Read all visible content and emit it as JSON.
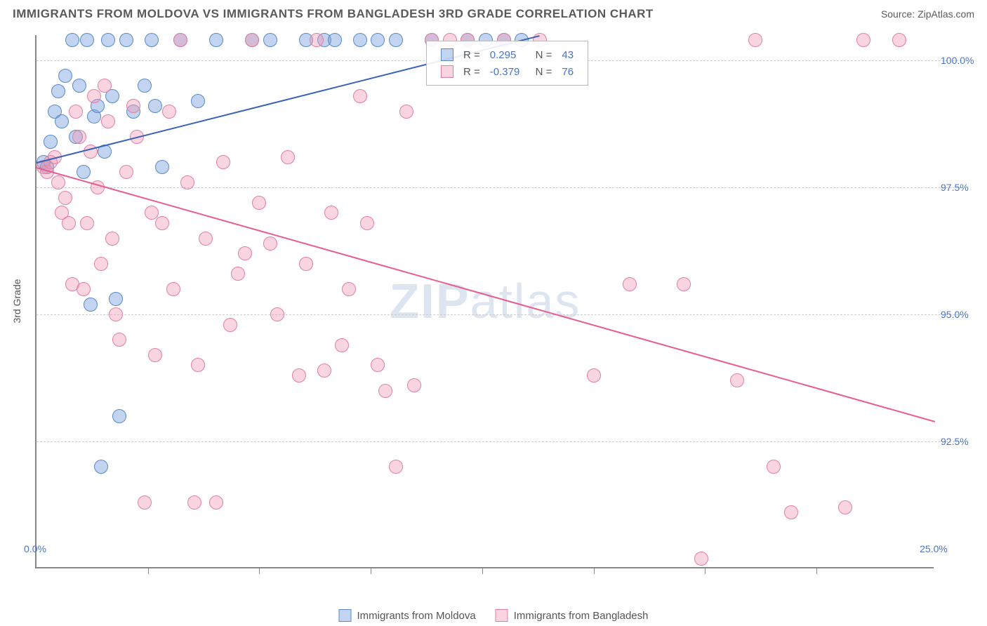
{
  "header": {
    "title": "IMMIGRANTS FROM MOLDOVA VS IMMIGRANTS FROM BANGLADESH 3RD GRADE CORRELATION CHART",
    "source": "Source: ZipAtlas.com"
  },
  "watermark": {
    "part1": "ZIP",
    "part2": "atlas"
  },
  "chart": {
    "type": "scatter",
    "ylabel": "3rd Grade",
    "background_color": "#ffffff",
    "grid_color": "#cccccc",
    "axis_color": "#888888",
    "label_color": "#4a74c9",
    "xlim": [
      0,
      25
    ],
    "ylim": [
      90,
      100.5
    ],
    "x_ticks_label": {
      "min": "0.0%",
      "max": "25.0%"
    },
    "y_ticks": [
      {
        "v": 92.5,
        "label": "92.5%"
      },
      {
        "v": 95.0,
        "label": "95.0%"
      },
      {
        "v": 97.5,
        "label": "97.5%"
      },
      {
        "v": 100.0,
        "label": "100.0%"
      }
    ],
    "x_tick_positions": [
      3.1,
      6.2,
      9.3,
      12.4,
      15.5,
      18.6,
      21.7
    ],
    "series": [
      {
        "name": "Immigrants from Moldova",
        "color_fill": "rgba(120,160,220,0.45)",
        "color_stroke": "#5a8ac9",
        "trend_color": "#3a63b8",
        "R": "0.295",
        "N": "43",
        "trend": {
          "x1": 0,
          "y1": 98.0,
          "x2": 14.0,
          "y2": 100.5
        },
        "points": [
          [
            0.2,
            98.0
          ],
          [
            0.3,
            97.9
          ],
          [
            0.4,
            98.4
          ],
          [
            0.5,
            99.0
          ],
          [
            0.6,
            99.4
          ],
          [
            0.7,
            98.8
          ],
          [
            0.8,
            99.7
          ],
          [
            1.0,
            100.4
          ],
          [
            1.1,
            98.5
          ],
          [
            1.2,
            99.5
          ],
          [
            1.3,
            97.8
          ],
          [
            1.4,
            100.4
          ],
          [
            1.5,
            95.2
          ],
          [
            1.6,
            98.9
          ],
          [
            1.7,
            99.1
          ],
          [
            1.8,
            92.0
          ],
          [
            1.9,
            98.2
          ],
          [
            2.0,
            100.4
          ],
          [
            2.1,
            99.3
          ],
          [
            2.2,
            95.3
          ],
          [
            2.3,
            93.0
          ],
          [
            2.5,
            100.4
          ],
          [
            2.7,
            99.0
          ],
          [
            3.0,
            99.5
          ],
          [
            3.2,
            100.4
          ],
          [
            3.3,
            99.1
          ],
          [
            3.5,
            97.9
          ],
          [
            4.0,
            100.4
          ],
          [
            4.5,
            99.2
          ],
          [
            5.0,
            100.4
          ],
          [
            6.0,
            100.4
          ],
          [
            6.5,
            100.4
          ],
          [
            7.5,
            100.4
          ],
          [
            8.0,
            100.4
          ],
          [
            8.3,
            100.4
          ],
          [
            9.0,
            100.4
          ],
          [
            9.5,
            100.4
          ],
          [
            10.0,
            100.4
          ],
          [
            11.0,
            100.4
          ],
          [
            12.0,
            100.4
          ],
          [
            12.5,
            100.4
          ],
          [
            13.0,
            100.4
          ],
          [
            13.5,
            100.4
          ]
        ]
      },
      {
        "name": "Immigrants from Bangladesh",
        "color_fill": "rgba(240,150,180,0.40)",
        "color_stroke": "#e37fa2",
        "trend_color": "#e85d8c",
        "R": "-0.379",
        "N": "76",
        "trend": {
          "x1": 0,
          "y1": 97.9,
          "x2": 25.0,
          "y2": 92.9
        },
        "points": [
          [
            0.2,
            97.9
          ],
          [
            0.3,
            97.8
          ],
          [
            0.4,
            98.0
          ],
          [
            0.5,
            98.1
          ],
          [
            0.6,
            97.6
          ],
          [
            0.7,
            97.0
          ],
          [
            0.8,
            97.3
          ],
          [
            0.9,
            96.8
          ],
          [
            1.0,
            95.6
          ],
          [
            1.1,
            99.0
          ],
          [
            1.2,
            98.5
          ],
          [
            1.3,
            95.5
          ],
          [
            1.4,
            96.8
          ],
          [
            1.5,
            98.2
          ],
          [
            1.6,
            99.3
          ],
          [
            1.7,
            97.5
          ],
          [
            1.8,
            96.0
          ],
          [
            1.9,
            99.5
          ],
          [
            2.0,
            98.8
          ],
          [
            2.1,
            96.5
          ],
          [
            2.2,
            95.0
          ],
          [
            2.3,
            94.5
          ],
          [
            2.5,
            97.8
          ],
          [
            2.7,
            99.1
          ],
          [
            2.8,
            98.5
          ],
          [
            3.0,
            91.3
          ],
          [
            3.2,
            97.0
          ],
          [
            3.3,
            94.2
          ],
          [
            3.5,
            96.8
          ],
          [
            3.7,
            99.0
          ],
          [
            3.8,
            95.5
          ],
          [
            4.0,
            100.4
          ],
          [
            4.2,
            97.6
          ],
          [
            4.4,
            91.3
          ],
          [
            4.5,
            94.0
          ],
          [
            4.7,
            96.5
          ],
          [
            5.0,
            91.3
          ],
          [
            5.2,
            98.0
          ],
          [
            5.4,
            94.8
          ],
          [
            5.6,
            95.8
          ],
          [
            5.8,
            96.2
          ],
          [
            6.0,
            100.4
          ],
          [
            6.2,
            97.2
          ],
          [
            6.5,
            96.4
          ],
          [
            6.7,
            95.0
          ],
          [
            7.0,
            98.1
          ],
          [
            7.3,
            93.8
          ],
          [
            7.5,
            96.0
          ],
          [
            7.8,
            100.4
          ],
          [
            8.0,
            93.9
          ],
          [
            8.2,
            97.0
          ],
          [
            8.5,
            94.4
          ],
          [
            8.7,
            95.5
          ],
          [
            9.0,
            99.3
          ],
          [
            9.2,
            96.8
          ],
          [
            9.5,
            94.0
          ],
          [
            9.7,
            93.5
          ],
          [
            10.0,
            92.0
          ],
          [
            10.3,
            99.0
          ],
          [
            10.5,
            93.6
          ],
          [
            11.0,
            100.4
          ],
          [
            11.5,
            100.4
          ],
          [
            12.0,
            100.4
          ],
          [
            13.0,
            100.4
          ],
          [
            14.0,
            100.4
          ],
          [
            15.5,
            93.8
          ],
          [
            16.5,
            95.6
          ],
          [
            18.0,
            95.6
          ],
          [
            18.5,
            90.2
          ],
          [
            19.5,
            93.7
          ],
          [
            20.0,
            100.4
          ],
          [
            20.5,
            92.0
          ],
          [
            21.0,
            91.1
          ],
          [
            22.5,
            91.2
          ],
          [
            23.0,
            100.4
          ],
          [
            24.0,
            100.4
          ]
        ]
      }
    ]
  },
  "bottom_legend": [
    {
      "swatch_fill": "rgba(120,160,220,0.45)",
      "swatch_stroke": "#5a8ac9",
      "label": "Immigrants from Moldova"
    },
    {
      "swatch_fill": "rgba(240,150,180,0.40)",
      "swatch_stroke": "#e37fa2",
      "label": "Immigrants from Bangladesh"
    }
  ],
  "stats_box": {
    "R_label": "R =",
    "N_label": "N ="
  }
}
